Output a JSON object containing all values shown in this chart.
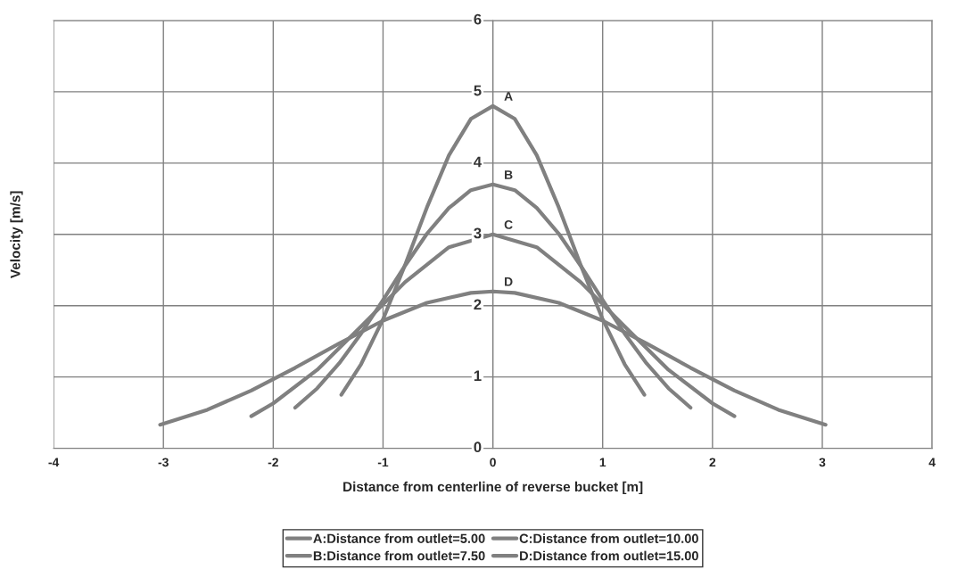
{
  "chart_data": {
    "type": "line",
    "xlabel": "Distance from centerline of reverse bucket [m]",
    "ylabel": "Velocity [m/s]",
    "xlim": [
      -4,
      4
    ],
    "xticks": [
      -4,
      -3,
      -2,
      -1,
      0,
      1,
      2,
      3,
      4
    ],
    "ylim": [
      0,
      6
    ],
    "yticks": [
      0,
      1,
      2,
      3,
      4,
      5,
      6
    ],
    "grid": true,
    "legend": "bottom",
    "marker": "none",
    "line_style": "solid",
    "series": [
      {
        "name": "A:Distance from outlet=5.00",
        "color": "#808080",
        "x": [
          -1.38,
          -1.2,
          -1.0,
          -0.8,
          -0.6,
          -0.4,
          -0.2,
          0,
          0.2,
          0.4,
          0.6,
          0.8,
          1.0,
          1.2,
          1.38
        ],
        "values": [
          0.75,
          1.18,
          1.81,
          2.57,
          3.38,
          4.11,
          4.62,
          4.8,
          4.62,
          4.11,
          3.38,
          2.57,
          1.81,
          1.18,
          0.75
        ]
      },
      {
        "name": "B:Distance from outlet=7.50",
        "color": "#808080",
        "x": [
          -1.8,
          -1.6,
          -1.4,
          -1.2,
          -1.0,
          -0.8,
          -0.6,
          -0.4,
          -0.2,
          0,
          0.2,
          0.4,
          0.6,
          0.8,
          1.0,
          1.2,
          1.4,
          1.6,
          1.8
        ],
        "values": [
          0.57,
          0.84,
          1.19,
          1.61,
          2.08,
          2.56,
          3.01,
          3.37,
          3.62,
          3.7,
          3.62,
          3.37,
          3.01,
          2.56,
          2.08,
          1.61,
          1.19,
          0.84,
          0.57
        ]
      },
      {
        "name": "C:Distance from outlet=10.00",
        "color": "#808080",
        "x": [
          -2.2,
          -2.0,
          -1.6,
          -1.2,
          -0.8,
          -0.4,
          0,
          0.4,
          0.8,
          1.2,
          1.6,
          2.0,
          2.2
        ],
        "values": [
          0.45,
          0.63,
          1.1,
          1.71,
          2.33,
          2.82,
          3.0,
          2.82,
          2.33,
          1.71,
          1.1,
          0.63,
          0.45
        ]
      },
      {
        "name": "D:Distance from outlet=15.00",
        "color": "#808080",
        "x": [
          -3.03,
          -2.6,
          -2.2,
          -1.8,
          -1.4,
          -1.0,
          -0.6,
          -0.2,
          0,
          0.2,
          0.6,
          1.0,
          1.4,
          1.8,
          2.2,
          2.6,
          3.03
        ],
        "values": [
          0.33,
          0.54,
          0.81,
          1.13,
          1.47,
          1.79,
          2.04,
          2.18,
          2.2,
          2.18,
          2.04,
          1.79,
          1.47,
          1.13,
          0.81,
          0.54,
          0.33
        ]
      }
    ],
    "annotations": [
      "A",
      "B",
      "C",
      "D"
    ]
  }
}
